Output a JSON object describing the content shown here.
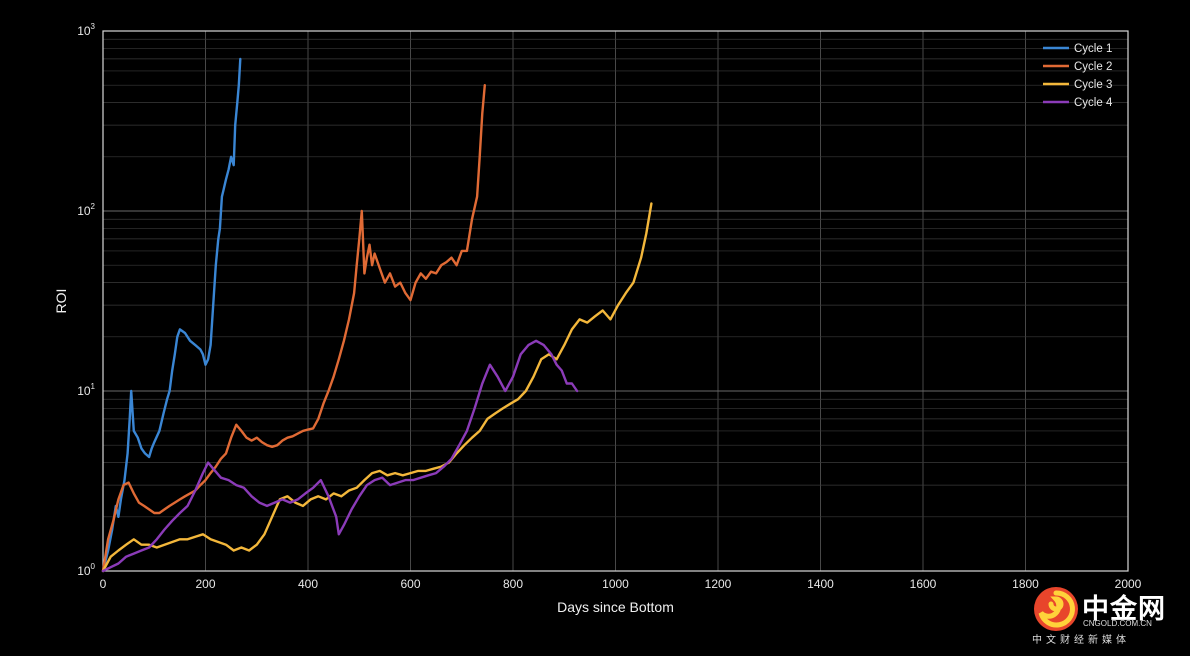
{
  "chart_data": {
    "type": "line",
    "title": "",
    "xlabel": "Days since Bottom",
    "ylabel": "ROI",
    "xlim": [
      0,
      2000
    ],
    "ylim": [
      1,
      1000
    ],
    "yscale": "log",
    "grid": true,
    "legend_position": "top-right",
    "x_ticks": [
      "0",
      "200",
      "400",
      "600",
      "800",
      "1000",
      "1200",
      "1400",
      "1600",
      "1800",
      "2000"
    ],
    "y_ticks": [
      {
        "base": "10",
        "exp": "0"
      },
      {
        "base": "10",
        "exp": "1"
      },
      {
        "base": "10",
        "exp": "2"
      },
      {
        "base": "10",
        "exp": "3"
      }
    ],
    "series": [
      {
        "name": "Cycle 1",
        "color": "#3a86d4",
        "x": [
          0,
          10,
          18,
          25,
          30,
          35,
          42,
          48,
          52,
          55,
          60,
          68,
          75,
          82,
          90,
          95,
          100,
          110,
          118,
          125,
          130,
          135,
          140,
          145,
          150,
          160,
          170,
          180,
          190,
          195,
          200,
          205,
          210,
          215,
          220,
          225,
          228,
          232,
          235,
          240,
          245,
          250,
          255,
          258,
          262,
          265,
          268
        ],
        "y": [
          1,
          1.3,
          1.7,
          2.3,
          2.0,
          2.5,
          3.2,
          4.5,
          7.0,
          10,
          6.0,
          5.5,
          4.8,
          4.5,
          4.3,
          4.8,
          5.2,
          6.0,
          7.5,
          9.0,
          10,
          13,
          16,
          20,
          22,
          21,
          19,
          18,
          17,
          16,
          14,
          15,
          18,
          30,
          50,
          70,
          80,
          120,
          130,
          150,
          170,
          200,
          180,
          300,
          400,
          500,
          700
        ]
      },
      {
        "name": "Cycle 2",
        "color": "#e06a35",
        "x": [
          0,
          10,
          20,
          30,
          40,
          50,
          60,
          70,
          80,
          90,
          100,
          110,
          120,
          130,
          140,
          150,
          160,
          170,
          180,
          190,
          200,
          210,
          220,
          230,
          240,
          250,
          260,
          270,
          280,
          290,
          300,
          310,
          320,
          330,
          340,
          350,
          360,
          370,
          380,
          390,
          400,
          410,
          420,
          430,
          440,
          450,
          460,
          470,
          480,
          490,
          495,
          500,
          505,
          510,
          515,
          520,
          525,
          530,
          540,
          550,
          560,
          570,
          580,
          590,
          600,
          610,
          620,
          630,
          640,
          650,
          660,
          670,
          680,
          690,
          700,
          710,
          720,
          730,
          735,
          740,
          745
        ],
        "y": [
          1,
          1.5,
          1.9,
          2.5,
          3.0,
          3.1,
          2.7,
          2.4,
          2.3,
          2.2,
          2.1,
          2.1,
          2.2,
          2.3,
          2.4,
          2.5,
          2.6,
          2.7,
          2.8,
          3.0,
          3.2,
          3.5,
          3.8,
          4.2,
          4.5,
          5.5,
          6.5,
          6.0,
          5.5,
          5.3,
          5.5,
          5.2,
          5.0,
          4.9,
          5.0,
          5.3,
          5.5,
          5.6,
          5.8,
          6.0,
          6.1,
          6.2,
          7.0,
          8.5,
          10,
          12,
          15,
          19,
          25,
          35,
          50,
          70,
          100,
          45,
          55,
          65,
          50,
          58,
          48,
          40,
          45,
          38,
          40,
          35,
          32,
          40,
          45,
          42,
          46,
          45,
          50,
          52,
          55,
          50,
          60,
          60,
          90,
          120,
          200,
          350,
          500
        ]
      },
      {
        "name": "Cycle 3",
        "color": "#f3b73b",
        "x": [
          0,
          15,
          30,
          45,
          60,
          75,
          90,
          105,
          120,
          135,
          150,
          165,
          180,
          195,
          210,
          225,
          240,
          255,
          270,
          285,
          300,
          315,
          330,
          345,
          360,
          375,
          390,
          405,
          420,
          435,
          450,
          465,
          480,
          495,
          510,
          525,
          540,
          555,
          570,
          585,
          600,
          615,
          630,
          645,
          660,
          675,
          690,
          705,
          720,
          735,
          750,
          765,
          780,
          795,
          810,
          825,
          840,
          855,
          870,
          885,
          900,
          915,
          930,
          945,
          960,
          975,
          990,
          1005,
          1020,
          1035,
          1050,
          1060,
          1070
        ],
        "y": [
          1,
          1.2,
          1.3,
          1.4,
          1.5,
          1.4,
          1.4,
          1.35,
          1.4,
          1.45,
          1.5,
          1.5,
          1.55,
          1.6,
          1.5,
          1.45,
          1.4,
          1.3,
          1.35,
          1.3,
          1.4,
          1.6,
          2.0,
          2.5,
          2.6,
          2.4,
          2.3,
          2.5,
          2.6,
          2.5,
          2.7,
          2.6,
          2.8,
          2.9,
          3.2,
          3.5,
          3.6,
          3.4,
          3.5,
          3.4,
          3.5,
          3.6,
          3.6,
          3.7,
          3.8,
          4.0,
          4.5,
          5.0,
          5.5,
          6.0,
          7.0,
          7.5,
          8.0,
          8.5,
          9.0,
          10,
          12,
          15,
          16,
          15,
          18,
          22,
          25,
          24,
          26,
          28,
          25,
          30,
          35,
          40,
          55,
          75,
          110
        ]
      },
      {
        "name": "Cycle 4",
        "color": "#8b3bb8",
        "x": [
          0,
          15,
          30,
          45,
          60,
          75,
          90,
          105,
          120,
          135,
          150,
          165,
          180,
          195,
          205,
          215,
          230,
          245,
          260,
          275,
          290,
          305,
          320,
          335,
          350,
          365,
          380,
          395,
          410,
          425,
          440,
          455,
          460,
          470,
          485,
          500,
          515,
          530,
          545,
          560,
          575,
          590,
          605,
          620,
          635,
          650,
          665,
          680,
          695,
          710,
          725,
          740,
          755,
          770,
          785,
          800,
          815,
          830,
          845,
          860,
          875,
          885,
          895,
          905,
          915,
          925
        ],
        "y": [
          1,
          1.05,
          1.1,
          1.2,
          1.25,
          1.3,
          1.35,
          1.5,
          1.7,
          1.9,
          2.1,
          2.3,
          2.8,
          3.5,
          4.0,
          3.7,
          3.3,
          3.2,
          3.0,
          2.9,
          2.6,
          2.4,
          2.3,
          2.4,
          2.5,
          2.4,
          2.5,
          2.7,
          2.9,
          3.2,
          2.6,
          2.0,
          1.6,
          1.8,
          2.2,
          2.6,
          3.0,
          3.2,
          3.3,
          3.0,
          3.1,
          3.2,
          3.2,
          3.3,
          3.4,
          3.5,
          3.8,
          4.2,
          5.0,
          6.0,
          8.0,
          11,
          14,
          12,
          10,
          12,
          16,
          18,
          19,
          18,
          16,
          14,
          13,
          11,
          11,
          10
        ]
      }
    ]
  },
  "watermark": {
    "name": "中金网",
    "url": "CNGOLD.COM.CN",
    "subtitle": "中文财经新媒体"
  }
}
